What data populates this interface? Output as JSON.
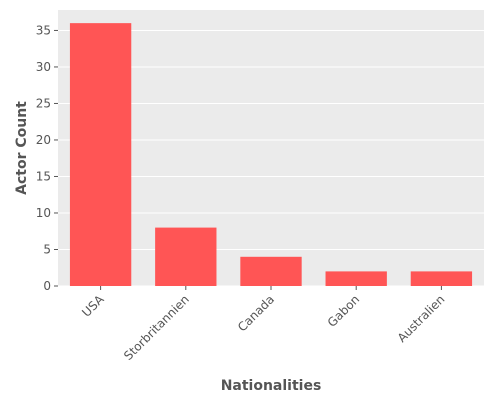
{
  "chart_data": {
    "type": "bar",
    "title": "",
    "xlabel": "Nationalities",
    "ylabel": "Actor Count",
    "categories": [
      "USA",
      "Storbritannien",
      "Canada",
      "Gabon",
      "Australien"
    ],
    "values": [
      36,
      8,
      4,
      2,
      2
    ],
    "ylim": [
      0,
      37.8
    ],
    "yticks": [
      0,
      5,
      10,
      15,
      20,
      25,
      30,
      35
    ],
    "grid": true,
    "legend": "none",
    "colors": {
      "bar": "#ff5555",
      "plot_background": "#ebebeb",
      "grid": "#ffffff",
      "text": "#555555"
    }
  }
}
